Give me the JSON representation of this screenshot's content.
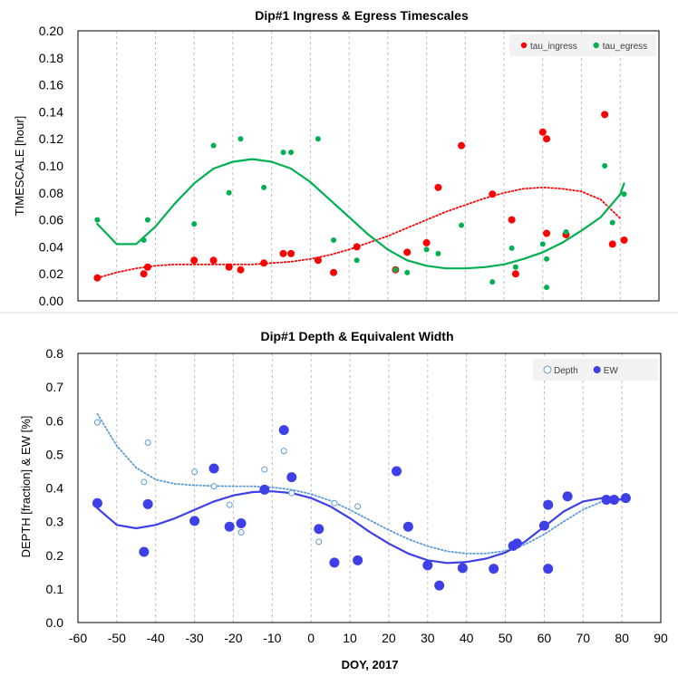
{
  "chart_data": [
    {
      "type": "scatter",
      "title": "Dip#1 Ingress & Egress Timescales",
      "xlabel": "",
      "ylabel": "TIMESCALE [hour]",
      "xlim": [
        -60,
        90
      ],
      "ylim": [
        0,
        0.2
      ],
      "yticks": [
        "0.00",
        "0.02",
        "0.04",
        "0.06",
        "0.08",
        "0.10",
        "0.12",
        "0.14",
        "0.16",
        "0.18",
        "0.20"
      ],
      "xgrid": true,
      "ygrid": false,
      "legend_position": "top-right",
      "series": [
        {
          "name": "tau_ingress",
          "color": "#ff0000",
          "x": [
            -55,
            -43,
            -42,
            -30,
            -25,
            -21,
            -18,
            -12,
            -7,
            -5,
            2,
            6,
            12,
            22,
            25,
            30,
            33,
            39,
            47,
            52,
            53,
            60,
            61,
            61,
            66,
            76,
            78,
            81
          ],
          "y": [
            0.017,
            0.02,
            0.025,
            0.03,
            0.03,
            0.025,
            0.023,
            0.028,
            0.035,
            0.035,
            0.03,
            0.021,
            0.04,
            0.023,
            0.036,
            0.043,
            0.084,
            0.115,
            0.079,
            0.06,
            0.02,
            0.125,
            0.12,
            0.05,
            0.049,
            0.138,
            0.042,
            0.045
          ]
        },
        {
          "name": "tau_egress",
          "color": "#00b050",
          "x": [
            -55,
            -43,
            -42,
            -30,
            -25,
            -21,
            -18,
            -12,
            -7,
            -5,
            2,
            6,
            12,
            22,
            25,
            30,
            33,
            39,
            47,
            52,
            53,
            60,
            61,
            61,
            66,
            76,
            78,
            81
          ],
          "y": [
            0.06,
            0.045,
            0.06,
            0.057,
            0.115,
            0.08,
            0.12,
            0.084,
            0.11,
            0.11,
            0.12,
            0.045,
            0.03,
            0.023,
            0.021,
            0.038,
            0.035,
            0.056,
            0.014,
            0.039,
            0.025,
            0.042,
            0.031,
            0.01,
            0.051,
            0.1,
            0.058,
            0.079
          ]
        }
      ],
      "trendlines": [
        {
          "series": "tau_ingress",
          "style": "dotted",
          "x": [
            -55,
            -50,
            -45,
            -40,
            -35,
            -30,
            -25,
            -20,
            -15,
            -10,
            -5,
            0,
            5,
            10,
            15,
            20,
            25,
            30,
            35,
            40,
            45,
            50,
            55,
            60,
            65,
            70,
            75,
            80
          ],
          "y": [
            0.017,
            0.021,
            0.024,
            0.026,
            0.027,
            0.027,
            0.027,
            0.027,
            0.027,
            0.028,
            0.029,
            0.031,
            0.034,
            0.038,
            0.043,
            0.048,
            0.054,
            0.06,
            0.066,
            0.071,
            0.076,
            0.08,
            0.083,
            0.084,
            0.083,
            0.081,
            0.075,
            0.061
          ]
        },
        {
          "series": "tau_egress",
          "style": "solid",
          "x": [
            -55,
            -50,
            -45,
            -40,
            -35,
            -30,
            -25,
            -20,
            -15,
            -10,
            -5,
            0,
            5,
            10,
            15,
            20,
            25,
            30,
            35,
            40,
            45,
            50,
            55,
            60,
            65,
            70,
            75,
            80,
            81
          ],
          "y": [
            0.057,
            0.042,
            0.042,
            0.055,
            0.072,
            0.087,
            0.098,
            0.103,
            0.105,
            0.103,
            0.098,
            0.088,
            0.075,
            0.062,
            0.049,
            0.038,
            0.03,
            0.026,
            0.024,
            0.024,
            0.025,
            0.027,
            0.031,
            0.036,
            0.043,
            0.052,
            0.062,
            0.079,
            0.087
          ]
        }
      ]
    },
    {
      "type": "scatter",
      "title": "Dip#1 Depth & Equivalent Width",
      "xlabel": "DOY, 2017",
      "ylabel": "DEPTH [fraction] & EW [%]",
      "xlim": [
        -60,
        90
      ],
      "ylim": [
        0,
        0.8
      ],
      "xticks": [
        "-60",
        "-50",
        "-40",
        "-30",
        "-20",
        "-10",
        "0",
        "10",
        "20",
        "30",
        "40",
        "50",
        "60",
        "70",
        "80",
        "90"
      ],
      "yticks": [
        "0.0",
        "0.1",
        "0.2",
        "0.3",
        "0.4",
        "0.5",
        "0.6",
        "0.7",
        "0.8"
      ],
      "xgrid": true,
      "ygrid": false,
      "legend_position": "top-right",
      "series": [
        {
          "name": "Depth",
          "color": "#5b9bd5",
          "marker": "open-circle",
          "x": [
            -55,
            -43,
            -42,
            -30,
            -25,
            -21,
            -18,
            -12,
            -7,
            -5,
            2,
            6,
            12
          ],
          "y": [
            0.595,
            0.418,
            0.535,
            0.448,
            0.405,
            0.35,
            0.268,
            0.455,
            0.51,
            0.385,
            0.24,
            0.355,
            0.345
          ]
        },
        {
          "name": "EW",
          "color": "#3f3fe8",
          "marker": "filled-circle",
          "x": [
            -55,
            -43,
            -42,
            -30,
            -25,
            -21,
            -18,
            -12,
            -7,
            -5,
            2,
            6,
            12,
            22,
            25,
            30,
            33,
            39,
            47,
            52,
            53,
            60,
            61,
            61,
            66,
            76,
            78,
            81
          ],
          "y": [
            0.355,
            0.21,
            0.352,
            0.302,
            0.458,
            0.285,
            0.295,
            0.395,
            0.572,
            0.432,
            0.278,
            0.178,
            0.185,
            0.45,
            0.285,
            0.17,
            0.11,
            0.162,
            0.16,
            0.228,
            0.235,
            0.288,
            0.35,
            0.16,
            0.375,
            0.365,
            0.365,
            0.37
          ]
        }
      ],
      "trendlines": [
        {
          "series": "Depth",
          "style": "dotted",
          "x": [
            -55,
            -50,
            -45,
            -40,
            -35,
            -30,
            -25,
            -20,
            -15,
            -10,
            -5,
            0,
            5,
            10,
            15,
            20,
            25,
            30,
            35,
            40,
            45,
            50,
            55,
            60,
            65,
            70,
            75,
            80
          ],
          "y": [
            0.62,
            0.525,
            0.46,
            0.425,
            0.412,
            0.408,
            0.406,
            0.405,
            0.405,
            0.402,
            0.395,
            0.382,
            0.362,
            0.335,
            0.305,
            0.275,
            0.248,
            0.227,
            0.212,
            0.205,
            0.205,
            0.213,
            0.232,
            0.262,
            0.3,
            0.336,
            0.36,
            0.368
          ]
        },
        {
          "series": "EW",
          "style": "solid",
          "x": [
            -55,
            -50,
            -45,
            -40,
            -35,
            -30,
            -25,
            -20,
            -15,
            -10,
            -5,
            0,
            5,
            10,
            15,
            20,
            25,
            30,
            35,
            40,
            45,
            50,
            55,
            60,
            65,
            70,
            75,
            80
          ],
          "y": [
            0.34,
            0.29,
            0.28,
            0.29,
            0.31,
            0.335,
            0.36,
            0.378,
            0.388,
            0.39,
            0.385,
            0.37,
            0.345,
            0.31,
            0.27,
            0.235,
            0.205,
            0.185,
            0.177,
            0.18,
            0.19,
            0.208,
            0.24,
            0.285,
            0.33,
            0.36,
            0.37,
            0.365
          ]
        }
      ]
    }
  ]
}
